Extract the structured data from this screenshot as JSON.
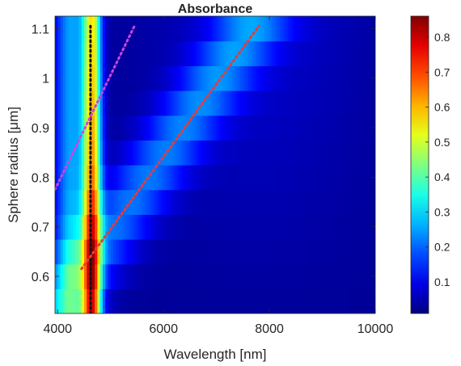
{
  "chart_data": {
    "type": "heatmap",
    "title": "Absorbance",
    "xlabel": "Wavelength [nm]",
    "ylabel": "Sphere radius [μm]",
    "xlim": [
      3950,
      10000
    ],
    "ylim": [
      0.525,
      1.125
    ],
    "xticks": [
      4000,
      6000,
      8000,
      10000
    ],
    "xtick_labels": [
      "4000",
      "6000",
      "8000",
      "10000"
    ],
    "yticks": [
      0.6,
      0.7,
      0.8,
      0.9,
      1.0,
      1.1
    ],
    "ytick_labels": [
      "0.6",
      "0.7",
      "0.8",
      "0.9",
      "1",
      "1.1"
    ],
    "colormap": "jet",
    "clim": [
      0.01,
      0.86
    ],
    "colorbar_ticks": [
      0.1,
      0.2,
      0.3,
      0.4,
      0.5,
      0.6,
      0.7,
      0.8
    ],
    "colorbar_tick_labels": [
      "0.1",
      "0.2",
      "0.3",
      "0.4",
      "0.5",
      "0.6",
      "0.7",
      "0.8"
    ],
    "radius_rows": [
      0.55,
      0.6,
      0.65,
      0.7,
      0.75,
      0.8,
      0.85,
      0.9,
      0.95,
      1.0,
      1.05,
      1.1
    ],
    "lines": [
      {
        "style": "dotted",
        "color": "#111111",
        "x": [
          4620,
          4620
        ],
        "y": [
          0.525,
          1.105
        ]
      },
      {
        "style": "dotted",
        "color": "#cc44dd",
        "x": [
          3950,
          5450
        ],
        "y": [
          0.775,
          1.105
        ]
      },
      {
        "style": "dotted",
        "color": "#e83a3a",
        "x": [
          4450,
          7800
        ],
        "y": [
          0.615,
          1.105
        ]
      }
    ]
  }
}
